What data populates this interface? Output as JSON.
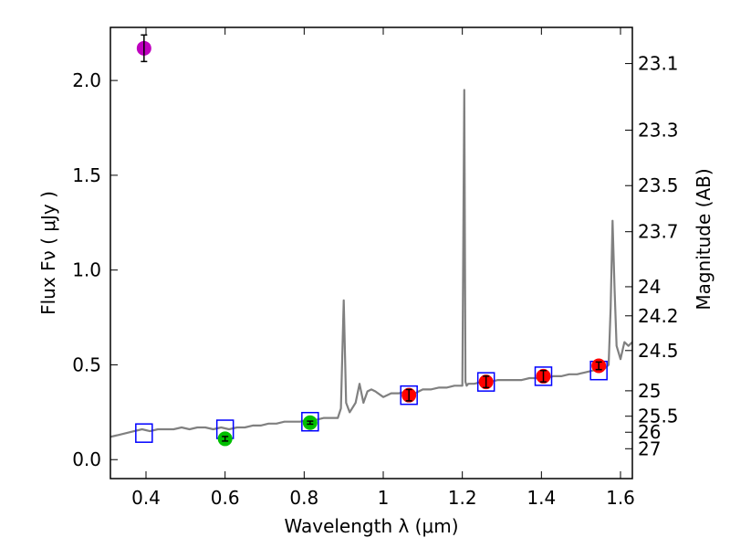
{
  "chart_data": {
    "type": "scatter",
    "xlabel": "Wavelength  λ (μm)",
    "ylabel": "Flux  Fν ( μJy )",
    "ylabel_right": "Magnitude (AB)",
    "xlim": [
      0.31,
      1.63
    ],
    "ylim": [
      -0.1,
      2.28
    ],
    "x_ticks": [
      0.4,
      0.6,
      0.8,
      1.0,
      1.2,
      1.4,
      1.6
    ],
    "x_tick_labels": [
      "0.4",
      "0.6",
      "0.8",
      "1",
      "1.2",
      "1.4",
      "1.6"
    ],
    "y_ticks": [
      0.0,
      0.5,
      1.0,
      1.5,
      2.0
    ],
    "y_tick_labels": [
      "0.0",
      "0.5",
      "1.0",
      "1.5",
      "2.0"
    ],
    "mag_ticks": [
      "23.1",
      "23.3",
      "23.5",
      "23.7",
      "24",
      "24.2",
      "24.5",
      "25",
      "25.5",
      "26",
      "27"
    ],
    "colors": {
      "spectrum": "#808080",
      "model_box": "#0000ff",
      "magenta": "#bf00bf",
      "green": "#00bf00",
      "red": "#ff0000",
      "errorbar": "#000000"
    },
    "series": [
      {
        "name": "model spectrum",
        "kind": "line",
        "x": [
          0.31,
          0.33,
          0.35,
          0.37,
          0.39,
          0.41,
          0.43,
          0.45,
          0.47,
          0.49,
          0.51,
          0.53,
          0.55,
          0.57,
          0.59,
          0.61,
          0.63,
          0.65,
          0.67,
          0.69,
          0.71,
          0.73,
          0.75,
          0.77,
          0.79,
          0.81,
          0.83,
          0.85,
          0.87,
          0.885,
          0.893,
          0.9,
          0.906,
          0.915,
          0.93,
          0.94,
          0.95,
          0.96,
          0.97,
          0.98,
          1.0,
          1.02,
          1.04,
          1.06,
          1.08,
          1.1,
          1.12,
          1.14,
          1.16,
          1.18,
          1.2,
          1.205,
          1.208,
          1.211,
          1.215,
          1.23,
          1.25,
          1.27,
          1.29,
          1.31,
          1.33,
          1.35,
          1.37,
          1.39,
          1.41,
          1.43,
          1.45,
          1.47,
          1.49,
          1.51,
          1.53,
          1.55,
          1.56,
          1.57,
          1.575,
          1.58,
          1.585,
          1.59,
          1.6,
          1.61,
          1.62,
          1.63
        ],
        "y": [
          0.12,
          0.13,
          0.14,
          0.15,
          0.16,
          0.15,
          0.16,
          0.16,
          0.16,
          0.17,
          0.16,
          0.17,
          0.17,
          0.16,
          0.17,
          0.16,
          0.17,
          0.17,
          0.18,
          0.18,
          0.19,
          0.19,
          0.2,
          0.2,
          0.2,
          0.21,
          0.21,
          0.22,
          0.22,
          0.22,
          0.27,
          0.84,
          0.3,
          0.25,
          0.3,
          0.4,
          0.3,
          0.36,
          0.37,
          0.36,
          0.33,
          0.35,
          0.35,
          0.36,
          0.35,
          0.37,
          0.37,
          0.38,
          0.38,
          0.39,
          0.39,
          1.95,
          0.41,
          0.39,
          0.4,
          0.4,
          0.41,
          0.41,
          0.42,
          0.42,
          0.42,
          0.42,
          0.43,
          0.43,
          0.43,
          0.44,
          0.44,
          0.45,
          0.45,
          0.46,
          0.47,
          0.48,
          0.48,
          0.5,
          0.8,
          1.26,
          0.9,
          0.6,
          0.53,
          0.62,
          0.6,
          0.62
        ]
      },
      {
        "name": "model photometry",
        "kind": "open-square",
        "x": [
          0.395,
          0.6,
          0.815,
          1.065,
          1.26,
          1.405,
          1.545
        ],
        "y": [
          0.14,
          0.16,
          0.2,
          0.34,
          0.41,
          0.44,
          0.47
        ]
      },
      {
        "name": "magenta detection",
        "kind": "point",
        "x": [
          0.395
        ],
        "y": [
          2.17
        ],
        "yerr": [
          0.07
        ]
      },
      {
        "name": "green detections",
        "kind": "point",
        "x": [
          0.6,
          0.815
        ],
        "y": [
          0.11,
          0.195
        ],
        "yerr": [
          0.012,
          0.008
        ]
      },
      {
        "name": "red detections",
        "kind": "point",
        "x": [
          1.065,
          1.26,
          1.405,
          1.545
        ],
        "y": [
          0.34,
          0.41,
          0.44,
          0.495
        ],
        "yerr": [
          0.03,
          0.03,
          0.03,
          0.02
        ]
      }
    ]
  }
}
